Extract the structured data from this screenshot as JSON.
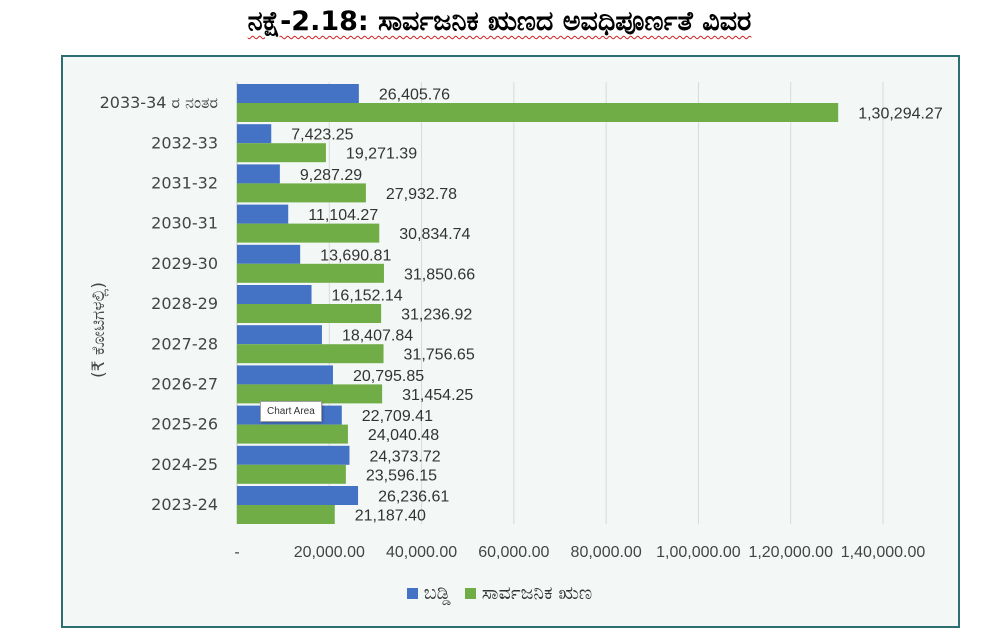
{
  "title": "ನಕ್ಷೆ-2.18: ಸಾರ್ವಜನಿಕ ಋಣದ ಅವಧಿಪೂರ್ಣತೆ ವಿವರ",
  "tooltip": "Chart Area",
  "colors": {
    "series1": "#4472c4",
    "series2": "#70ad47",
    "grid": "#d9d9d9",
    "border": "#2b6f72"
  },
  "chart_data": {
    "type": "bar",
    "orientation": "horizontal",
    "title": "ನಕ್ಷೆ-2.18: ಸಾರ್ವಜನಿಕ ಋಣದ ಅವಧಿಪೂರ್ಣತೆ ವಿವರ",
    "ylabel": "(₹ ಕೋಟಿಗಳಲ್ಲಿ)",
    "xlabel": "",
    "xlim": [
      0,
      140000
    ],
    "grid": true,
    "legend": "bottom",
    "categories": [
      "2033-34 ರ ನಂತರ",
      "2032-33",
      "2031-32",
      "2030-31",
      "2029-30",
      "2028-29",
      "2027-28",
      "2026-27",
      "2025-26",
      "2024-25",
      "2023-24"
    ],
    "ticks": [
      {
        "value": 0,
        "label": "-"
      },
      {
        "value": 20000,
        "label": "20,000.00"
      },
      {
        "value": 40000,
        "label": "40,000.00"
      },
      {
        "value": 60000,
        "label": "60,000.00"
      },
      {
        "value": 80000,
        "label": "80,000.00"
      },
      {
        "value": 100000,
        "label": "1,00,000.00"
      },
      {
        "value": 120000,
        "label": "1,20,000.00"
      },
      {
        "value": 140000,
        "label": "1,40,000.00"
      }
    ],
    "series": [
      {
        "name": "ಬಡ್ಡಿ",
        "color": "#4472c4",
        "values": [
          26405.76,
          7423.25,
          9287.29,
          11104.27,
          13690.81,
          16152.14,
          18407.84,
          20795.85,
          22709.41,
          24373.72,
          26236.61
        ],
        "labels": [
          "26,405.76",
          "7,423.25",
          "9,287.29",
          "11,104.27",
          "13,690.81",
          "16,152.14",
          "18,407.84",
          "20,795.85",
          "22,709.41",
          "24,373.72",
          "26,236.61"
        ]
      },
      {
        "name": "ಸಾರ್ವಜನಿಕ ಋಣ",
        "color": "#70ad47",
        "values": [
          130294.27,
          19271.39,
          27932.78,
          30834.74,
          31850.66,
          31236.92,
          31756.65,
          31454.25,
          24040.48,
          23596.15,
          21187.4
        ],
        "labels": [
          "1,30,294.27",
          "19,271.39",
          "27,932.78",
          "30,834.74",
          "31,850.66",
          "31,236.92",
          "31,756.65",
          "31,454.25",
          "24,040.48",
          "23,596.15",
          "21,187.40"
        ]
      }
    ]
  }
}
